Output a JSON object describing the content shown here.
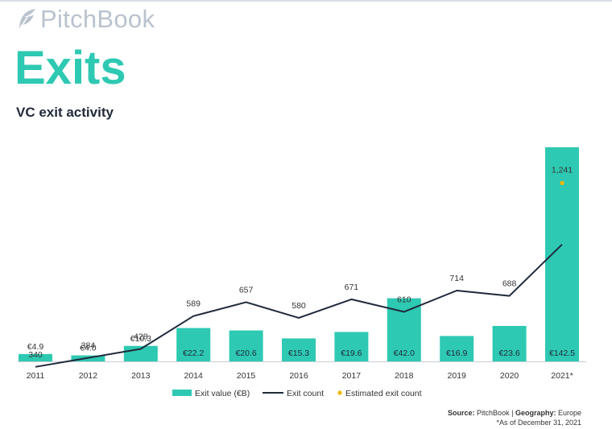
{
  "header": {
    "logo_text": "PitchBook",
    "heading": "Exits",
    "subtitle": "VC exit activity"
  },
  "colors": {
    "bar": "#2ec9b2",
    "line": "#1f2a3c",
    "estimate": "#f2b705",
    "label": "#333333",
    "bar_label_inside": "#1f2a3c"
  },
  "chart_data": {
    "type": "bar",
    "title": "VC exit activity",
    "categories": [
      "2011",
      "2012",
      "2013",
      "2014",
      "2015",
      "2016",
      "2017",
      "2018",
      "2019",
      "2020",
      "2021*"
    ],
    "series": [
      {
        "name": "Exit value (€B)",
        "type": "bar",
        "values": [
          4.9,
          4.0,
          10.3,
          22.2,
          20.6,
          15.3,
          19.6,
          42.0,
          16.9,
          23.6,
          142.5
        ],
        "labels": [
          "€4.9",
          "€4.0",
          "€10.3",
          "€22.2",
          "€20.6",
          "€15.3",
          "€19.6",
          "€42.0",
          "€16.9",
          "€23.6",
          "€142.5"
        ]
      },
      {
        "name": "Exit count",
        "type": "line",
        "values": [
          340,
          384,
          428,
          589,
          657,
          580,
          671,
          610,
          714,
          688,
          940
        ],
        "labels": [
          "340",
          "384",
          "428",
          "589",
          "657",
          "580",
          "671",
          "610",
          "714",
          "688",
          ""
        ]
      },
      {
        "name": "Estimated exit count",
        "type": "scatter",
        "category": "2021*",
        "value": 1241,
        "label": "1,241"
      }
    ],
    "legend": [
      "Exit value (€B)",
      "Exit count",
      "Estimated exit count"
    ],
    "legend_position": "bottom",
    "xlabel": "",
    "ylabel": ""
  },
  "footer": {
    "source_label": "Source:",
    "source_text": "PitchBook |",
    "geography_label": "Geography:",
    "geography_text": "Europe",
    "note": "*As of December 31, 2021"
  }
}
